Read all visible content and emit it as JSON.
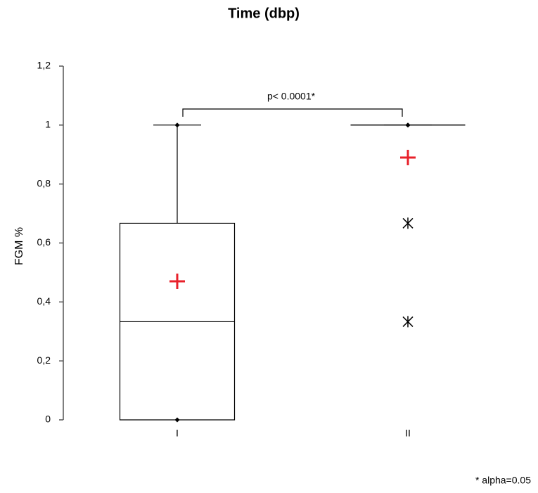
{
  "chart_data": {
    "type": "box",
    "title": "Time (dbp)",
    "y_label": "FGM %",
    "categories": [
      "I",
      "II"
    ],
    "boxes": [
      {
        "min": 0,
        "q1": 0,
        "median": 0.333,
        "q3": 0.667,
        "max": 1,
        "mean": 0.47,
        "outliers": []
      },
      {
        "min": 1,
        "q1": 1,
        "median": 1,
        "q3": 1,
        "max": 1,
        "mean": 0.89,
        "outliers": [
          0.667,
          0.333
        ]
      }
    ],
    "mean_color": "#e8202a",
    "box_color": "#000000",
    "ylim": [
      0,
      1.2
    ],
    "yticks": [
      0,
      {
        "value": 0.2,
        "label": "0,2"
      },
      {
        "value": 0.4,
        "label": "0,4"
      },
      {
        "value": 0.6,
        "label": "0,6"
      },
      {
        "value": 0.8,
        "label": "0,8"
      },
      1,
      {
        "value": 1.2,
        "label": "1,2"
      }
    ],
    "annotation": "p< 0.0001*",
    "footnote": "* alpha=0.05"
  }
}
